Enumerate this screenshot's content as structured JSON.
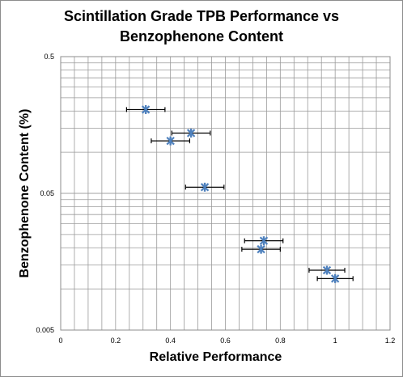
{
  "chart_data": {
    "type": "scatter",
    "title_line1": "Scintillation Grade TPB Performance vs",
    "title_line2": "Benzophenone Content",
    "xlabel": "Relative Performance",
    "ylabel": "Benzophenone Content (%)",
    "xlim": [
      0,
      1.2
    ],
    "ylim": [
      0.005,
      0.5
    ],
    "y_scale": "log",
    "x_ticks": [
      "0",
      "0.2",
      "0.4",
      "0.6",
      "0.8",
      "1",
      "1.2"
    ],
    "y_ticks": [
      "0.5",
      "0.05",
      "0.005"
    ],
    "grid": true,
    "legend": "none",
    "marker_color": "#4f81bd",
    "errorbar_color": "#000000",
    "points": [
      {
        "x": 0.31,
        "y": 0.205,
        "xerr": 0.07
      },
      {
        "x": 0.475,
        "y": 0.138,
        "xerr": 0.07
      },
      {
        "x": 0.4,
        "y": 0.121,
        "xerr": 0.07
      },
      {
        "x": 0.525,
        "y": 0.0555,
        "xerr": 0.07
      },
      {
        "x": 0.74,
        "y": 0.0225,
        "xerr": 0.07
      },
      {
        "x": 0.73,
        "y": 0.0195,
        "xerr": 0.07
      },
      {
        "x": 0.97,
        "y": 0.0137,
        "xerr": 0.065
      },
      {
        "x": 1.0,
        "y": 0.0119,
        "xerr": 0.065
      }
    ]
  }
}
